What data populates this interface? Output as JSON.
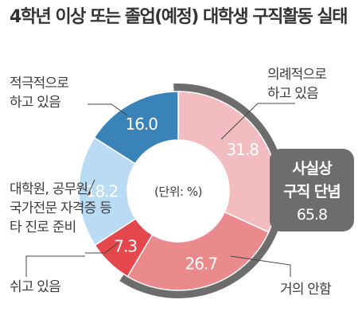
{
  "title": "4학년 이상 또는 졸업(예정) 대학생 구직활동 실태",
  "chart_data": {
    "type": "pie",
    "variant": "donut",
    "center_label": "(단위: %)",
    "slices": [
      {
        "label_lines": [
          "의례적으로",
          "하고 있음"
        ],
        "value": 31.8,
        "color": "#f2bcc0"
      },
      {
        "label_lines": [
          "거의 안함"
        ],
        "value": 26.7,
        "color": "#ea8a8c"
      },
      {
        "label_lines": [
          "쉬고 있음"
        ],
        "value": 7.3,
        "color": "#e4484d"
      },
      {
        "label_lines": [
          "대학원, 공무원,",
          "국가전문 자격증 등",
          "타 진로 준비"
        ],
        "value": 18.2,
        "color": "#b9dbf3"
      },
      {
        "label_lines": [
          "적극적으로",
          "하고 있음"
        ],
        "value": 16.0,
        "color": "#3a83b8"
      }
    ],
    "annotation": {
      "lines": [
        "사실상",
        "구직 단념"
      ],
      "value": "65.8",
      "color": "#6d6d6d"
    }
  }
}
